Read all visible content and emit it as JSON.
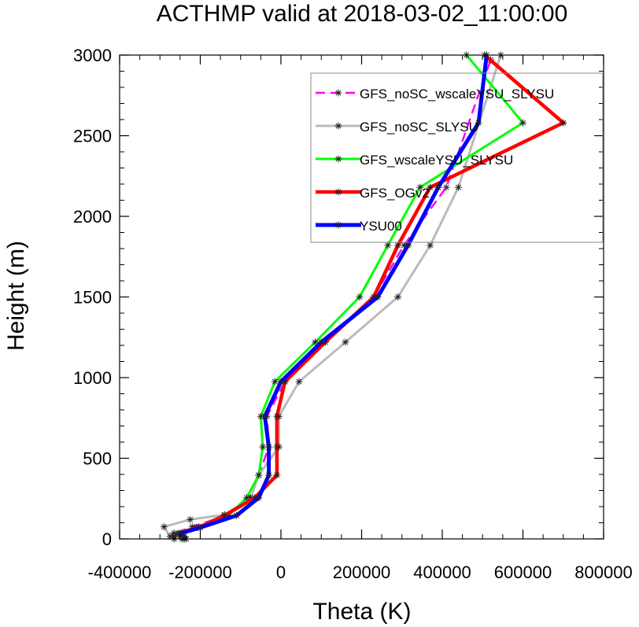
{
  "chart_data": {
    "type": "line",
    "title": "ACTHMP valid at 2018-03-02_11:00:00",
    "xlabel": "Theta (K)",
    "ylabel": "Height (m)",
    "xlim": [
      -400000,
      800000
    ],
    "ylim": [
      0,
      3000
    ],
    "x_ticks": [
      -400000,
      -200000,
      0,
      200000,
      400000,
      600000,
      800000
    ],
    "x_tick_labels": [
      "-400000",
      "-200000",
      "0",
      "200000",
      "400000",
      "600000",
      "800000"
    ],
    "y_ticks": [
      0,
      500,
      1000,
      1500,
      2000,
      2500,
      3000
    ],
    "y_tick_labels": [
      "0",
      "500",
      "1000",
      "1500",
      "2000",
      "2500",
      "3000"
    ],
    "grid": false,
    "legend_position": "top-right",
    "series": [
      {
        "name": "GFS_noSC_wscaleYSU_SLYSU",
        "color": "#ff00ff",
        "dashed": true,
        "marker": "asterisk",
        "x": [
          -240000,
          -260000,
          -265000,
          -220000,
          -135000,
          -80000,
          -55000,
          -30000,
          -35000,
          10000,
          110000,
          230000,
          305000,
          410000,
          520000
        ],
        "y": [
          0,
          15,
          35,
          75,
          145,
          255,
          395,
          570,
          760,
          975,
          1220,
          1500,
          1820,
          2180,
          2970
        ]
      },
      {
        "name": "GFS_noSC_SLYSU",
        "color": "#bbbbbb",
        "dashed": false,
        "marker": "asterisk",
        "x": [
          -245000,
          -275000,
          -290000,
          -225000,
          -140000,
          -75000,
          -55000,
          -5000,
          -5000,
          45000,
          160000,
          290000,
          370000,
          440000,
          545000
        ],
        "y": [
          0,
          15,
          75,
          120,
          150,
          255,
          395,
          570,
          760,
          975,
          1220,
          1500,
          1820,
          2180,
          3000
        ]
      },
      {
        "name": "GFS_wscaleYSU_SLYSU",
        "color": "#00ff00",
        "dashed": false,
        "marker": "asterisk",
        "x": [
          -240000,
          -250000,
          -265000,
          -210000,
          -130000,
          -85000,
          -55000,
          -45000,
          -50000,
          -15000,
          85000,
          195000,
          265000,
          345000,
          600000,
          460000
        ],
        "y": [
          0,
          15,
          35,
          70,
          145,
          255,
          395,
          570,
          760,
          975,
          1220,
          1500,
          1820,
          2180,
          2580,
          3000
        ]
      },
      {
        "name": "GFS_OGv2",
        "color": "#ff0000",
        "dashed": false,
        "marker": "asterisk",
        "x": [
          -265000,
          -265000,
          -255000,
          -205000,
          -140000,
          -65000,
          -10000,
          -10000,
          -10000,
          10000,
          110000,
          230000,
          290000,
          370000,
          700000,
          505000
        ],
        "y": [
          0,
          15,
          35,
          70,
          145,
          255,
          395,
          570,
          760,
          975,
          1220,
          1500,
          1820,
          2180,
          2580,
          3000
        ]
      },
      {
        "name": "YSU00",
        "color": "#0000ff",
        "dashed": false,
        "marker": "asterisk",
        "x": [
          -235000,
          -240000,
          -248000,
          -200000,
          -110000,
          -55000,
          -30000,
          -30000,
          -40000,
          0,
          100000,
          240000,
          315000,
          390000,
          490000,
          510000
        ],
        "y": [
          0,
          15,
          35,
          70,
          145,
          255,
          395,
          570,
          760,
          975,
          1220,
          1500,
          1820,
          2180,
          2580,
          3000
        ]
      }
    ]
  }
}
